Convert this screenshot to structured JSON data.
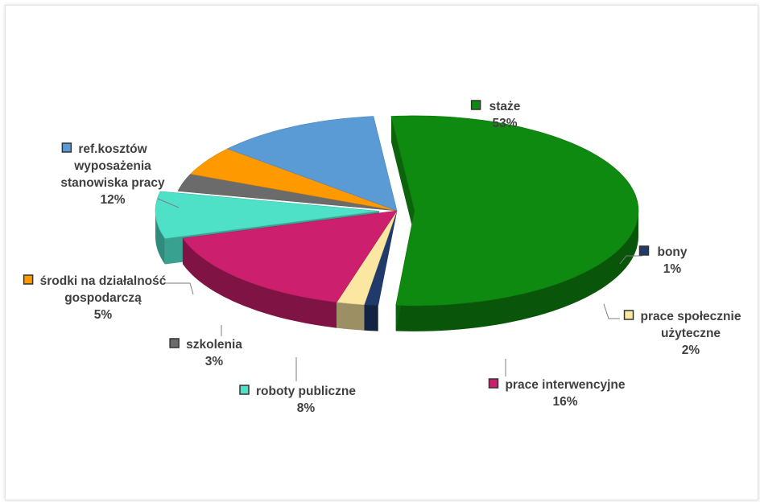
{
  "chart_data": {
    "type": "pie",
    "style": "3d-exploded",
    "slices": [
      {
        "label": "staże",
        "lines": [
          "staże"
        ],
        "value": 53,
        "pct_label": "53%",
        "color": "#0f8a10",
        "exploded": true
      },
      {
        "label": "bony",
        "lines": [
          "bony"
        ],
        "value": 1,
        "pct_label": "1%",
        "color": "#1f3a6b",
        "exploded": false
      },
      {
        "label": "prace społecznie użyteczne",
        "lines": [
          "prace społecznie",
          "użyteczne"
        ],
        "value": 2,
        "pct_label": "2%",
        "color": "#fbe7a1",
        "exploded": false
      },
      {
        "label": "prace interwencyjne",
        "lines": [
          "prace interwencyjne"
        ],
        "value": 16,
        "pct_label": "16%",
        "color": "#cc1f6e",
        "exploded": false
      },
      {
        "label": "roboty publiczne",
        "lines": [
          "roboty publiczne"
        ],
        "value": 8,
        "pct_label": "8%",
        "color": "#4fe0c8",
        "exploded": true
      },
      {
        "label": "szkolenia",
        "lines": [
          "szkolenia"
        ],
        "value": 3,
        "pct_label": "3%",
        "color": "#6b6b6b",
        "exploded": false
      },
      {
        "label": "środki na działalność gospodarczą",
        "lines": [
          "środki na działalność",
          "gospodarczą"
        ],
        "value": 5,
        "pct_label": "5%",
        "color": "#ff9900",
        "exploded": false
      },
      {
        "label": "ref.kosztów wyposażenia stanowiska pracy",
        "lines": [
          "ref.kosztów",
          "wyposażenia",
          "stanowiska pracy"
        ],
        "value": 12,
        "pct_label": "12%",
        "color": "#5b9bd5",
        "exploded": false
      }
    ]
  }
}
